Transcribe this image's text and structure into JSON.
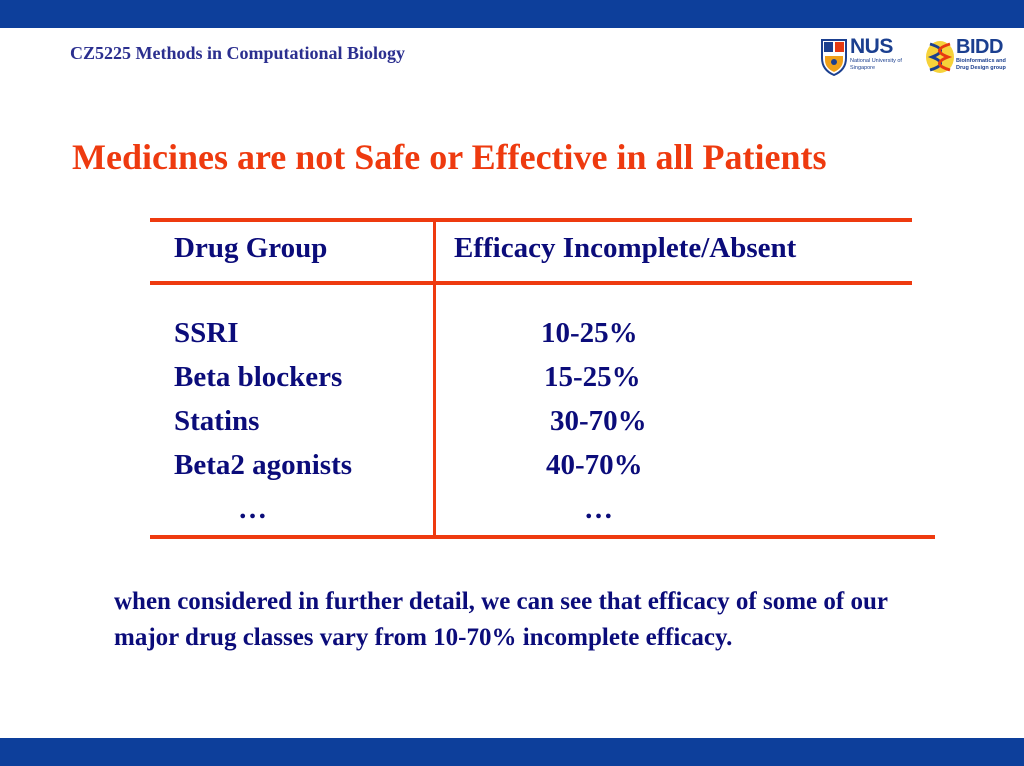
{
  "header": {
    "course_title": "CZ5225 Methods in Computational Biology",
    "logos": {
      "nus": {
        "name": "NUS",
        "subtitle": "National University of Singapore",
        "icon": "nus-crest-icon"
      },
      "bidd": {
        "name": "BIDD",
        "subtitle": "Bioinformatics and Drug Design group",
        "icon": "bidd-helix-icon"
      }
    }
  },
  "slide": {
    "title": "Medicines are not Safe or Effective in all Patients",
    "table": {
      "columns": [
        "Drug Group",
        "Efficacy Incomplete/Absent"
      ],
      "rows": [
        {
          "drug": "SSRI",
          "efficacy": "10-25%"
        },
        {
          "drug": "Beta blockers",
          "efficacy": "15-25%"
        },
        {
          "drug": "Statins",
          "efficacy": "30-70%"
        },
        {
          "drug": "Beta2 agonists",
          "efficacy": "40-70%"
        },
        {
          "drug": "…",
          "efficacy": "…"
        }
      ]
    },
    "body": "when considered in further detail, we can see that efficacy of some of our major drug classes vary from 10-70% incomplete efficacy."
  },
  "colors": {
    "band": "#0d3f9b",
    "title": "#ee3a0f",
    "rule": "#ee3a0f",
    "text": "#0b0c7a",
    "course_title": "#2b2f8f"
  }
}
